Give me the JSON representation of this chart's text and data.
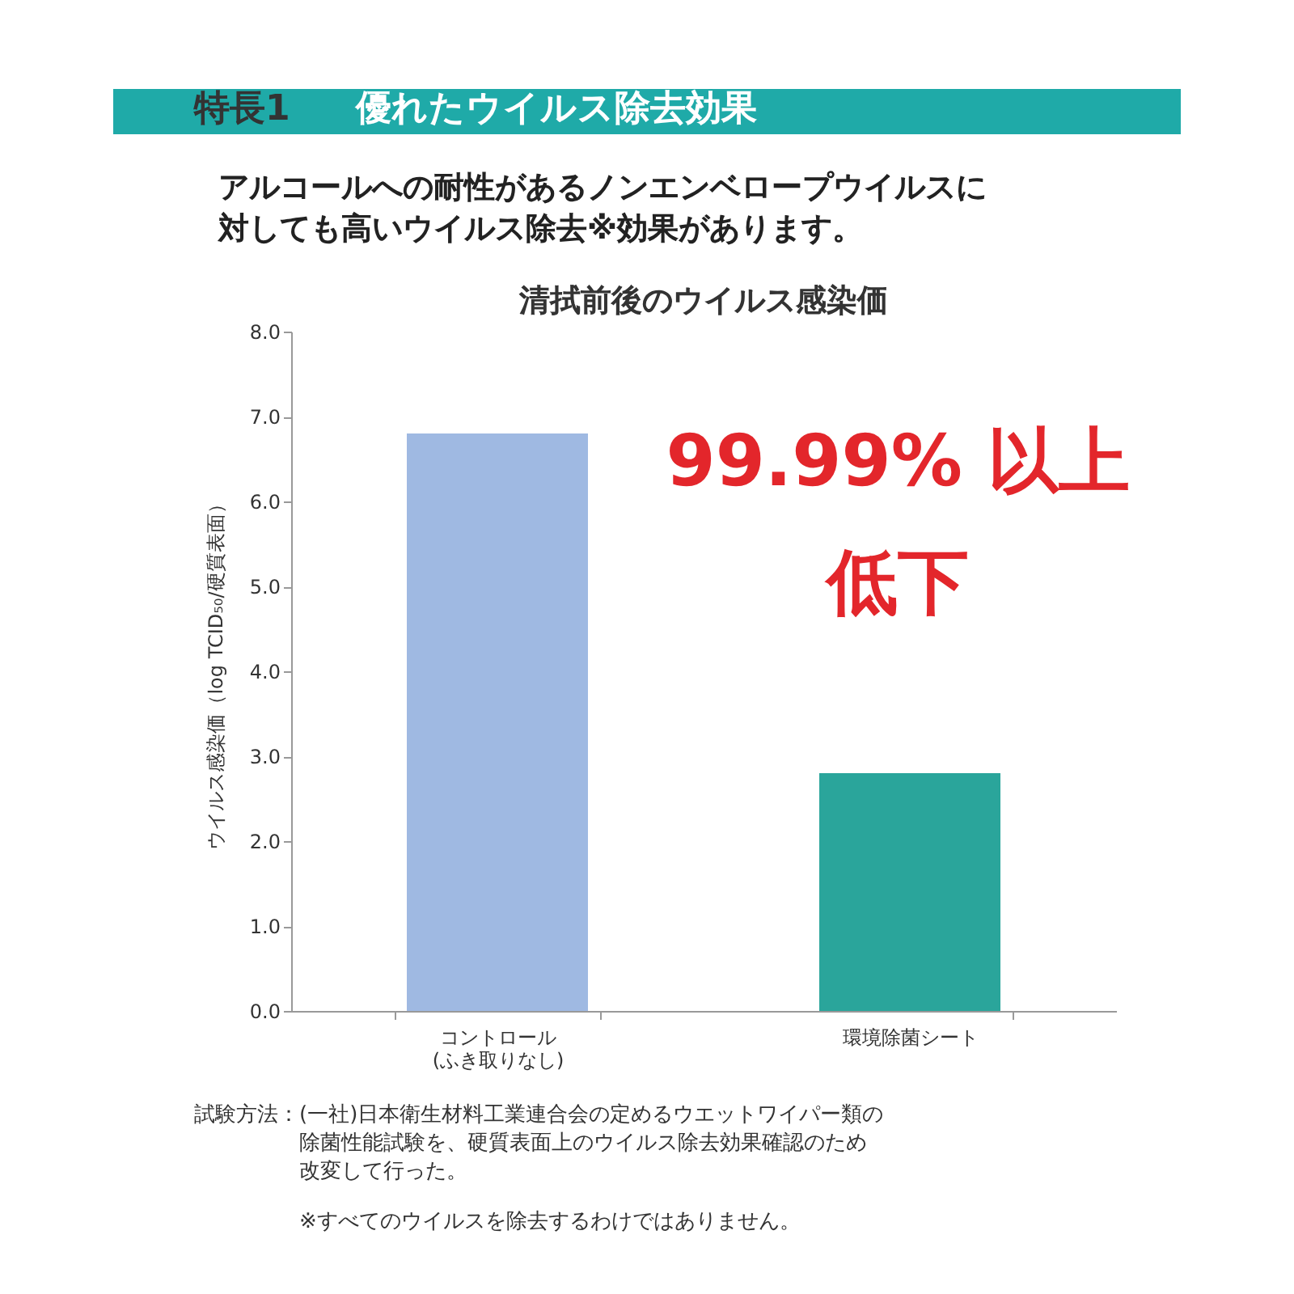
{
  "chart_data": {
    "type": "bar",
    "title": "優れたウイルス除去効果",
    "subtitle": "アルコールへの耐性があるノンエンベロープウイルスに対しても高いウイルス除去※効果があります。",
    "ylabel": "ウイルス感染価（log TCID₅₀/硬質表面）",
    "categories": [
      "コントロール\n(ふき取りなし)",
      "環境除菌シート"
    ],
    "values": [
      6.8,
      2.8
    ],
    "colors": [
      "#9fb9e2",
      "#2aa59b"
    ],
    "ylim": [
      0,
      8
    ],
    "yticks": [
      {
        "value": 0,
        "label": "0.0"
      },
      {
        "value": 1,
        "label": "1.0"
      },
      {
        "value": 2,
        "label": "2.0"
      },
      {
        "value": 3,
        "label": "3.0"
      },
      {
        "value": 4,
        "label": "4.0"
      },
      {
        "value": 5,
        "label": "5.0"
      },
      {
        "value": 6,
        "label": "6.0"
      },
      {
        "value": 7,
        "label": "7.0"
      },
      {
        "value": 8,
        "label": "8.0"
      }
    ],
    "grid": false,
    "annotations": [
      "特長1",
      "清拭前後のウイルス感染価",
      "99.99% 以上",
      "低下",
      "試験方法：",
      "(一社)日本衛生材料工業連合会の定めるウエットワイパー類の除菌性能試験を、硬質表面上のウイルス除去効果確認のため改変して行った。",
      "※すべてのウイルスを除去するわけではありません。"
    ]
  }
}
